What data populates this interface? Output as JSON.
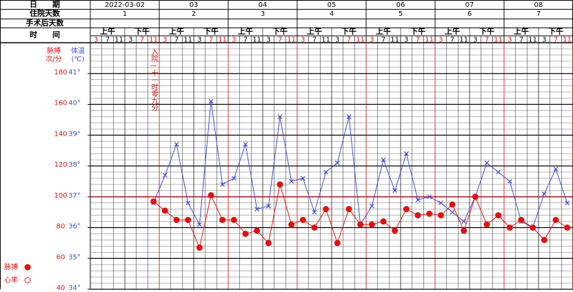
{
  "chart_data": {
    "type": "line",
    "header": {
      "date": "日　　期",
      "hospital_days": "住院天数",
      "post_op_days": "手术后天数",
      "time": "时　　间"
    },
    "days": [
      {
        "date": "2022-03-02",
        "day": "1",
        "am": "上午",
        "pm": "下午",
        "times": [
          "3",
          "7",
          "11",
          "3",
          "7",
          "11"
        ]
      },
      {
        "date": "03",
        "day": "2",
        "am": "上午",
        "pm": "下午",
        "times": [
          "3",
          "7",
          "11",
          "3",
          "7",
          "11"
        ]
      },
      {
        "date": "04",
        "day": "3",
        "am": "上午",
        "pm": "下午",
        "times": [
          "3",
          "7",
          "11",
          "3",
          "7",
          "11"
        ]
      },
      {
        "date": "05",
        "day": "4",
        "am": "上午",
        "pm": "下午",
        "times": [
          "3",
          "7",
          "11",
          "3",
          "7",
          "11"
        ]
      },
      {
        "date": "06",
        "day": "5",
        "am": "上午",
        "pm": "下午",
        "times": [
          "3",
          "7",
          "11",
          "3",
          "7",
          "11"
        ]
      },
      {
        "date": "07",
        "day": "6",
        "am": "上午",
        "pm": "下午",
        "times": [
          "3",
          "7",
          "11",
          "3",
          "7",
          "11"
        ]
      },
      {
        "date": "08",
        "day": "7",
        "am": "上午",
        "pm": "下午",
        "times": [
          "3",
          "7",
          "11",
          "3",
          "7",
          "11"
        ]
      }
    ],
    "y_label": [
      "脉搏",
      "次/分"
    ],
    "y2_label": [
      "体温",
      "(℃)"
    ],
    "ylim": [
      40,
      200
    ],
    "yticks": [
      40,
      60,
      80,
      100,
      120,
      140,
      160,
      180
    ],
    "y2lim": [
      34,
      42
    ],
    "y2ticks": [
      {
        "value": 34,
        "label": "34°"
      },
      {
        "value": 35,
        "label": "35°"
      },
      {
        "value": 36,
        "label": "36°"
      },
      {
        "value": 37,
        "label": "37°"
      },
      {
        "value": 38,
        "label": "38°"
      },
      {
        "value": 39,
        "label": "39°"
      },
      {
        "value": 40,
        "label": "40°"
      },
      {
        "value": 41,
        "label": "41°"
      }
    ],
    "reference_line": 37,
    "annotation": "入院—十一时零九分",
    "series": [
      {
        "axis": "y2",
        "color": "#3f4fd0",
        "marker": "x",
        "values": [
          null,
          null,
          null,
          null,
          null,
          36.8,
          37.7,
          38.7,
          36.8,
          36.1,
          40.1,
          37.4,
          37.6,
          38.7,
          36.6,
          36.7,
          39.6,
          37.5,
          37.6,
          36.5,
          37.8,
          38.1,
          39.6,
          36.1,
          36.7,
          38.2,
          37.2,
          38.4,
          36.9,
          37.0,
          36.8,
          36.5,
          36.2,
          37.0,
          38.1,
          37.8,
          37.5,
          36.2,
          36.0,
          37.1,
          37.9,
          36.8
        ]
      },
      {
        "axis": "y",
        "color": "#e01010",
        "marker": "dot",
        "values": [
          null,
          null,
          null,
          null,
          null,
          97,
          91,
          85,
          85,
          67,
          101,
          85,
          85,
          76,
          78,
          70,
          108,
          82,
          85,
          80,
          92,
          70,
          92,
          82,
          82,
          84,
          78,
          92,
          88,
          89,
          88,
          95,
          78,
          100,
          82,
          88,
          80,
          85,
          80,
          72,
          85,
          80
        ]
      }
    ],
    "legend": [
      {
        "name": "脉搏",
        "marker": "dot",
        "color": "#e01010"
      },
      {
        "name": "心率",
        "marker": "circle",
        "color": "#e01010"
      }
    ]
  }
}
